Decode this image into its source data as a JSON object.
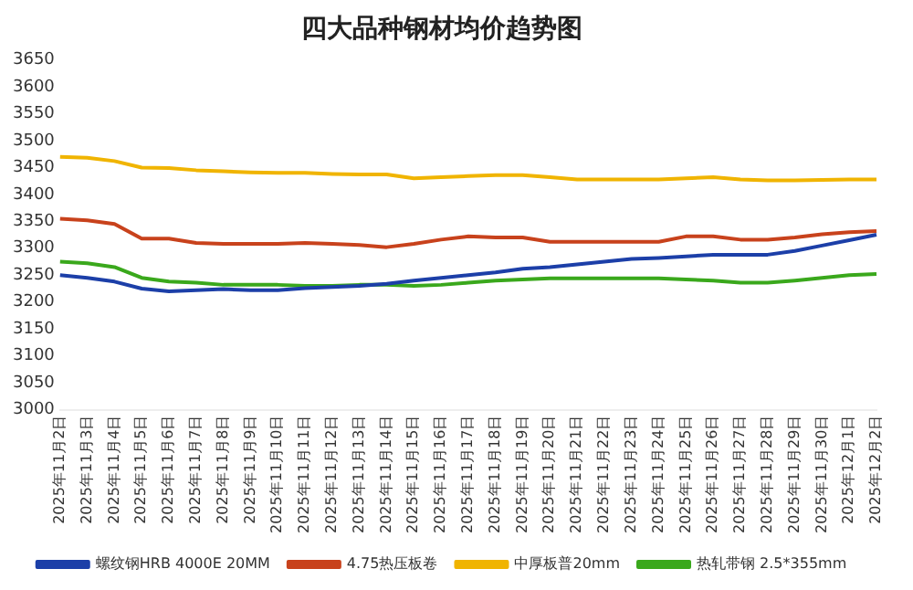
{
  "chart_data": {
    "type": "line",
    "title": "四大品种钢材均价趋势图",
    "categories": [
      "2025年11月2日",
      "2025年11月3日",
      "2025年11月4日",
      "2025年11月5日",
      "2025年11月6日",
      "2025年11月7日",
      "2025年11月8日",
      "2025年11月9日",
      "2025年11月10日",
      "2025年11月11日",
      "2025年11月12日",
      "2025年11月13日",
      "2025年11月14日",
      "2025年11月15日",
      "2025年11月16日",
      "2025年11月17日",
      "2025年11月18日",
      "2025年11月19日",
      "2025年11月20日",
      "2025年11月21日",
      "2025年11月22日",
      "2025年11月23日",
      "2025年11月24日",
      "2025年11月25日",
      "2025年11月26日",
      "2025年11月27日",
      "2025年11月28日",
      "2025年11月29日",
      "2025年11月30日",
      "2025年12月1日",
      "2025年12月2日"
    ],
    "series": [
      {
        "name": "螺纹钢HRB 4000E 20MM",
        "color": "#1c3fa8",
        "values": [
          3250,
          3245,
          3238,
          3225,
          3220,
          3222,
          3224,
          3222,
          3222,
          3226,
          3228,
          3230,
          3234,
          3240,
          3245,
          3250,
          3255,
          3262,
          3265,
          3270,
          3275,
          3280,
          3282,
          3285,
          3288,
          3288,
          3288,
          3295,
          3305,
          3315,
          3325
        ]
      },
      {
        "name": "4.75热压板卷",
        "color": "#c8421c",
        "values": [
          3355,
          3352,
          3345,
          3318,
          3318,
          3310,
          3308,
          3308,
          3308,
          3310,
          3308,
          3306,
          3302,
          3308,
          3316,
          3322,
          3320,
          3320,
          3312,
          3312,
          3312,
          3312,
          3312,
          3322,
          3322,
          3316,
          3316,
          3320,
          3326,
          3330,
          3332
        ]
      },
      {
        "name": "中厚板普20mm",
        "color": "#f0b400",
        "values": [
          3470,
          3468,
          3462,
          3450,
          3449,
          3445,
          3443,
          3441,
          3440,
          3440,
          3438,
          3437,
          3437,
          3430,
          3432,
          3434,
          3436,
          3436,
          3432,
          3428,
          3428,
          3428,
          3428,
          3430,
          3432,
          3428,
          3426,
          3426,
          3427,
          3428,
          3428
        ]
      },
      {
        "name": "热轧带钢 2.5*355mm",
        "color": "#3aa81c",
        "values": [
          3275,
          3272,
          3265,
          3245,
          3238,
          3236,
          3232,
          3232,
          3232,
          3230,
          3230,
          3232,
          3232,
          3230,
          3232,
          3236,
          3240,
          3242,
          3244,
          3244,
          3244,
          3244,
          3244,
          3242,
          3240,
          3236,
          3236,
          3240,
          3245,
          3250,
          3252
        ]
      }
    ],
    "ylim": [
      3000,
      3650
    ],
    "yticks": [
      3000,
      3050,
      3100,
      3150,
      3200,
      3250,
      3300,
      3350,
      3400,
      3450,
      3500,
      3550,
      3600,
      3650
    ],
    "grid": false,
    "legend": "bottom",
    "marker": "none",
    "line_style": "solid"
  }
}
